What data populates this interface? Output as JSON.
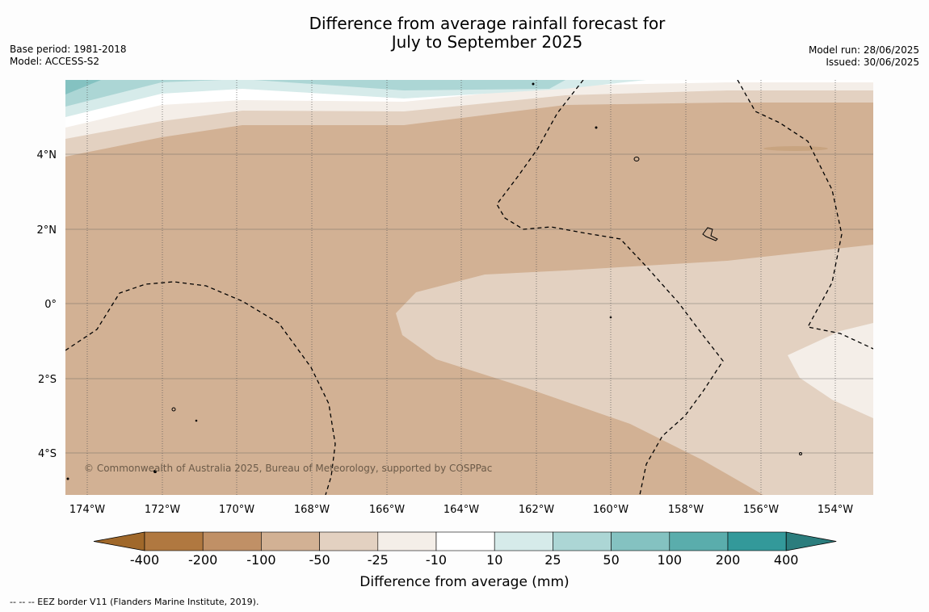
{
  "header": {
    "title_line1": "Difference from average rainfall forecast for",
    "title_line2": "July to September 2025",
    "base_period": "Base period: 1981-2018",
    "model": "Model: ACCESS-S2",
    "model_run": "Model run: 28/06/2025",
    "issued": "Issued: 30/06/2025"
  },
  "map": {
    "longitude_labels": [
      "174°W",
      "172°W",
      "170°W",
      "168°W",
      "166°W",
      "164°W",
      "162°W",
      "160°W",
      "158°W",
      "156°W",
      "154°W"
    ],
    "latitude_labels": [
      "4°N",
      "2°N",
      "0°",
      "2°S",
      "4°S"
    ],
    "copyright": "© Commonwealth of Australia 2025, Bureau of Meteorology, supported by COSPPac"
  },
  "colorbar": {
    "label": "Difference from average (mm)",
    "ticks": [
      "-400",
      "-200",
      "-100",
      "-50",
      "-25",
      "-10",
      "10",
      "25",
      "50",
      "100",
      "200",
      "400"
    ],
    "colors": [
      "#a0682a",
      "#b07840",
      "#c09066",
      "#d2b194",
      "#e3d1c1",
      "#f4eee8",
      "#ffffff",
      "#d6ebea",
      "#acd6d5",
      "#84c2c1",
      "#5aadac",
      "#33999a",
      "#2b7d7d"
    ]
  },
  "footnote": "--  --  -- EEZ border V11 (Flanders Marine Institute, 2019)."
}
